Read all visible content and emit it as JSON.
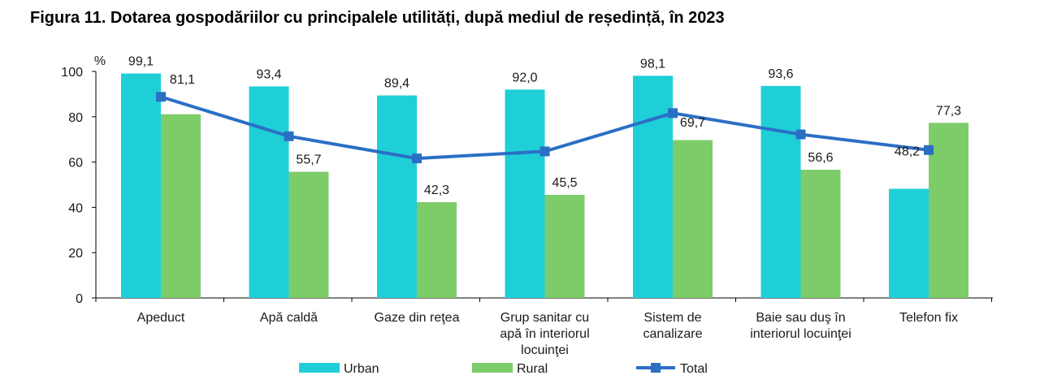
{
  "title": "Figura 11. Dotarea gospodăriilor cu principalele utilități, după mediul de reședință, în 2023",
  "chart_data": {
    "type": "bar",
    "unit_label": "%",
    "ylim": [
      0,
      100
    ],
    "yticks": [
      0,
      20,
      40,
      60,
      80,
      100
    ],
    "grid": false,
    "legend_position": "bottom",
    "categories": [
      [
        "Apeduct"
      ],
      [
        "Apă caldă"
      ],
      [
        "Gaze din reţea"
      ],
      [
        "Grup sanitar cu",
        "apă în interiorul",
        "locuinţei"
      ],
      [
        "Sistem de",
        "canalizare"
      ],
      [
        "Baie sau duş în",
        "interiorul locuinţei"
      ],
      [
        "Telefon fix"
      ]
    ],
    "series": [
      {
        "name": "Urban",
        "kind": "bar",
        "color": "#1fcfd8",
        "values": [
          99.1,
          93.4,
          89.4,
          92.0,
          98.1,
          93.6,
          48.2
        ],
        "labels": [
          "99,1",
          "93,4",
          "89,4",
          "92,0",
          "98,1",
          "93,6",
          "48,2"
        ]
      },
      {
        "name": "Rural",
        "kind": "bar",
        "color": "#7ccc6a",
        "values": [
          81.1,
          55.7,
          42.3,
          45.5,
          69.7,
          56.6,
          77.3
        ],
        "labels": [
          "81,1",
          "55,7",
          "42,3",
          "45,5",
          "69,7",
          "56,6",
          "77,3"
        ]
      },
      {
        "name": "Total",
        "kind": "line",
        "color": "#2b6fc5",
        "values": [
          88.8,
          71.4,
          61.6,
          64.7,
          81.6,
          72.2,
          65.3
        ]
      }
    ]
  }
}
